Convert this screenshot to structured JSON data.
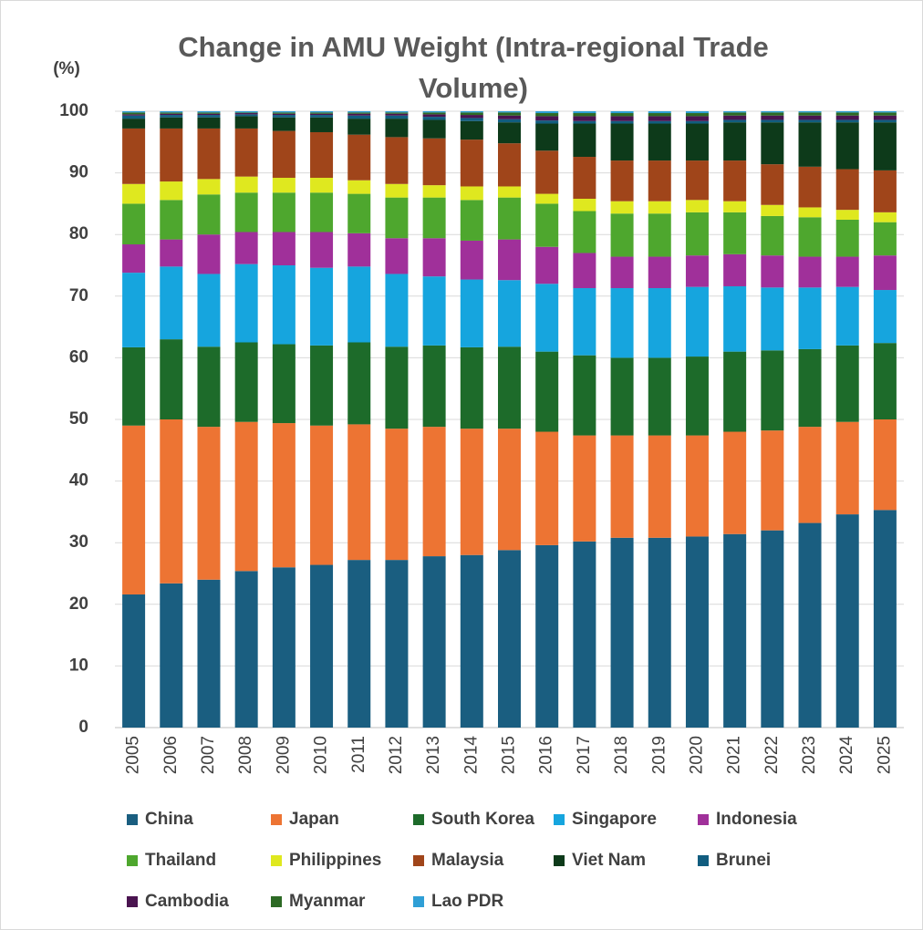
{
  "chart_data": {
    "type": "stacked_bar",
    "title": "Change in AMU Weight (Intra-regional Trade Volume)",
    "y_axis_label": "(%)",
    "categories": [
      "2005",
      "2006",
      "2007",
      "2008",
      "2009",
      "2010",
      "2011",
      "2012",
      "2013",
      "2014",
      "2015",
      "2016",
      "2017",
      "2018",
      "2019",
      "2020",
      "2021",
      "2022",
      "2023",
      "2024",
      "2025"
    ],
    "ylim": [
      0,
      100
    ],
    "yticks": [
      0,
      10,
      20,
      30,
      40,
      50,
      60,
      70,
      80,
      90,
      100
    ],
    "grid": true,
    "series": [
      {
        "name": "China",
        "color": "#1a5e80",
        "values": [
          21.6,
          23.4,
          24.0,
          25.4,
          26.0,
          26.4,
          27.2,
          27.2,
          27.8,
          28.0,
          28.8,
          29.6,
          30.2,
          30.8,
          30.8,
          31.0,
          31.4,
          32.0,
          33.2,
          34.6,
          35.3
        ]
      },
      {
        "name": "Japan",
        "color": "#ed7433",
        "values": [
          27.4,
          26.6,
          24.8,
          24.2,
          23.4,
          22.6,
          22.0,
          21.3,
          21.0,
          20.5,
          19.7,
          18.4,
          17.2,
          16.6,
          16.6,
          16.4,
          16.6,
          16.2,
          15.6,
          15.0,
          14.7
        ]
      },
      {
        "name": "South Korea",
        "color": "#1d6b2a",
        "values": [
          12.7,
          13.0,
          13.0,
          12.9,
          12.8,
          13.0,
          13.3,
          13.3,
          13.2,
          13.2,
          13.3,
          13.0,
          13.0,
          12.6,
          12.6,
          12.8,
          13.0,
          13.0,
          12.6,
          12.4,
          12.4
        ]
      },
      {
        "name": "Singapore",
        "color": "#16a5de",
        "values": [
          12.1,
          11.8,
          11.8,
          12.7,
          12.8,
          12.6,
          12.3,
          11.8,
          11.2,
          11.0,
          10.8,
          11.0,
          10.9,
          11.3,
          11.3,
          11.3,
          10.6,
          10.2,
          10.0,
          9.5,
          8.6
        ]
      },
      {
        "name": "Indonesia",
        "color": "#a0309a",
        "values": [
          4.6,
          4.4,
          6.4,
          5.2,
          5.4,
          5.8,
          5.4,
          5.8,
          6.2,
          6.3,
          6.6,
          6.0,
          5.7,
          5.1,
          5.1,
          5.1,
          5.2,
          5.2,
          5.0,
          4.9,
          5.6
        ]
      },
      {
        "name": "Thailand",
        "color": "#4ea72e",
        "values": [
          6.6,
          6.4,
          6.5,
          6.4,
          6.4,
          6.4,
          6.4,
          6.6,
          6.6,
          6.6,
          6.8,
          7.0,
          6.8,
          7.0,
          7.0,
          7.0,
          6.8,
          6.4,
          6.4,
          6.0,
          5.4
        ]
      },
      {
        "name": "Philippines",
        "color": "#dfe81f",
        "values": [
          3.2,
          3.0,
          2.5,
          2.6,
          2.4,
          2.4,
          2.2,
          2.2,
          2.0,
          2.2,
          1.8,
          1.6,
          2.0,
          2.0,
          2.0,
          2.0,
          1.8,
          1.8,
          1.6,
          1.6,
          1.6
        ]
      },
      {
        "name": "Malaysia",
        "color": "#a0451a",
        "values": [
          9.0,
          8.6,
          8.2,
          7.8,
          7.6,
          7.4,
          7.4,
          7.6,
          7.6,
          7.6,
          7.0,
          7.0,
          6.8,
          6.6,
          6.6,
          6.4,
          6.6,
          6.6,
          6.6,
          6.6,
          6.8
        ]
      },
      {
        "name": "Viet Nam",
        "color": "#0d3a1a",
        "values": [
          1.6,
          1.8,
          1.8,
          2.0,
          2.2,
          2.4,
          2.6,
          3.0,
          3.0,
          3.0,
          3.4,
          4.4,
          5.4,
          6.0,
          6.0,
          6.0,
          6.2,
          6.8,
          7.2,
          7.6,
          7.8
        ]
      },
      {
        "name": "Brunei",
        "color": "#115d7f",
        "values": [
          0.5,
          0.4,
          0.4,
          0.3,
          0.4,
          0.4,
          0.5,
          0.5,
          0.5,
          0.5,
          0.5,
          0.5,
          0.4,
          0.4,
          0.4,
          0.4,
          0.4,
          0.4,
          0.4,
          0.4,
          0.4
        ]
      },
      {
        "name": "Cambodia",
        "color": "#4a1450",
        "values": [
          0.2,
          0.2,
          0.2,
          0.2,
          0.2,
          0.2,
          0.3,
          0.3,
          0.4,
          0.5,
          0.6,
          0.7,
          0.8,
          0.8,
          0.8,
          0.8,
          0.7,
          0.7,
          0.7,
          0.7,
          0.7
        ]
      },
      {
        "name": "Myanmar",
        "color": "#2d6a25",
        "values": [
          0.3,
          0.2,
          0.2,
          0.1,
          0.2,
          0.2,
          0.2,
          0.2,
          0.3,
          0.4,
          0.5,
          0.5,
          0.5,
          0.5,
          0.5,
          0.5,
          0.5,
          0.5,
          0.5,
          0.5,
          0.5
        ]
      },
      {
        "name": "Lao PDR",
        "color": "#2f9fd6",
        "values": [
          0.2,
          0.2,
          0.2,
          0.2,
          0.2,
          0.2,
          0.2,
          0.2,
          0.2,
          0.2,
          0.2,
          0.3,
          0.3,
          0.3,
          0.3,
          0.3,
          0.2,
          0.2,
          0.2,
          0.2,
          0.2
        ]
      }
    ]
  }
}
